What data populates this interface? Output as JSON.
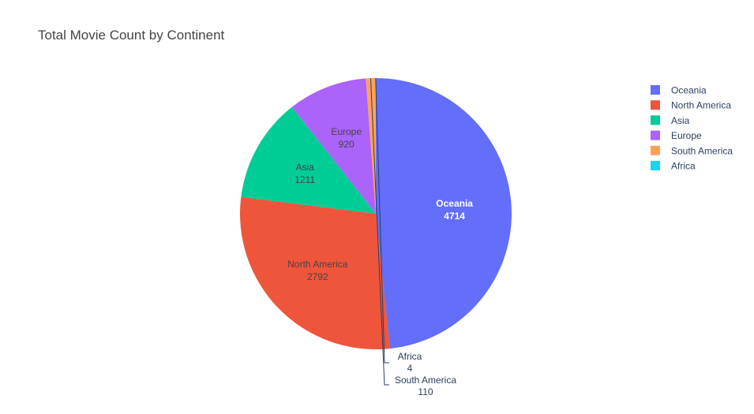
{
  "chart_data": {
    "type": "pie",
    "title": "Total Movie Count by Continent",
    "slices": [
      {
        "label": "Oceania",
        "value": 4714,
        "color": "#636efa"
      },
      {
        "label": "North America",
        "value": 2792,
        "color": "#ef553b"
      },
      {
        "label": "Asia",
        "value": 1211,
        "color": "#00cc96"
      },
      {
        "label": "Europe",
        "value": 920,
        "color": "#ab63fa"
      },
      {
        "label": "South America",
        "value": 110,
        "color": "#ffa15a"
      },
      {
        "label": "Africa",
        "value": 4,
        "color": "#19d3f3"
      }
    ],
    "legend_position": "top-right",
    "sort_descending": true,
    "direction": "clockwise",
    "start": "top"
  }
}
